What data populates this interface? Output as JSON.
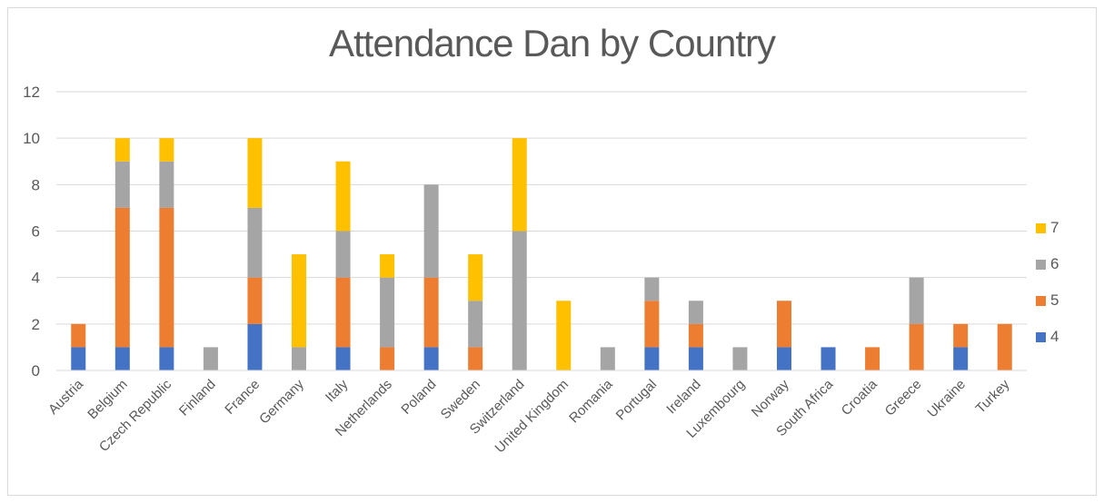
{
  "chart_data": {
    "type": "bar",
    "stacked": true,
    "title": "Attendance Dan by Country",
    "xlabel": "",
    "ylabel": "",
    "ylim": [
      0,
      12
    ],
    "yticks": [
      0,
      2,
      4,
      6,
      8,
      10,
      12
    ],
    "grid": true,
    "legend_position": "right",
    "categories": [
      "Austria",
      "Belgium",
      "Czech Republic",
      "Finland",
      "France",
      "Germany",
      "Italy",
      "Netherlands",
      "Poland",
      "Sweden",
      "Switzerland",
      "United Kingdom",
      "Romania",
      "Portugal",
      "Ireland",
      "Luxembourg",
      "Norway",
      "South Africa",
      "Croatia",
      "Greece",
      "Ukraine",
      "Turkey"
    ],
    "series": [
      {
        "name": "4",
        "color": "#4472c4",
        "values": [
          1,
          1,
          1,
          0,
          2,
          0,
          1,
          0,
          1,
          0,
          0,
          0,
          0,
          1,
          1,
          0,
          1,
          1,
          0,
          0,
          1,
          0
        ]
      },
      {
        "name": "5",
        "color": "#ed7d31",
        "values": [
          1,
          6,
          6,
          0,
          2,
          0,
          3,
          1,
          3,
          1,
          0,
          0,
          0,
          2,
          1,
          0,
          2,
          0,
          1,
          2,
          1,
          2
        ]
      },
      {
        "name": "6",
        "color": "#a5a5a5",
        "values": [
          0,
          2,
          2,
          1,
          3,
          1,
          2,
          3,
          4,
          2,
          6,
          0,
          1,
          1,
          1,
          1,
          0,
          0,
          0,
          2,
          0,
          0
        ]
      },
      {
        "name": "7",
        "color": "#ffc000",
        "values": [
          0,
          1,
          1,
          0,
          3,
          4,
          3,
          1,
          0,
          2,
          4,
          3,
          0,
          0,
          0,
          0,
          0,
          0,
          0,
          0,
          0,
          0
        ]
      }
    ]
  }
}
